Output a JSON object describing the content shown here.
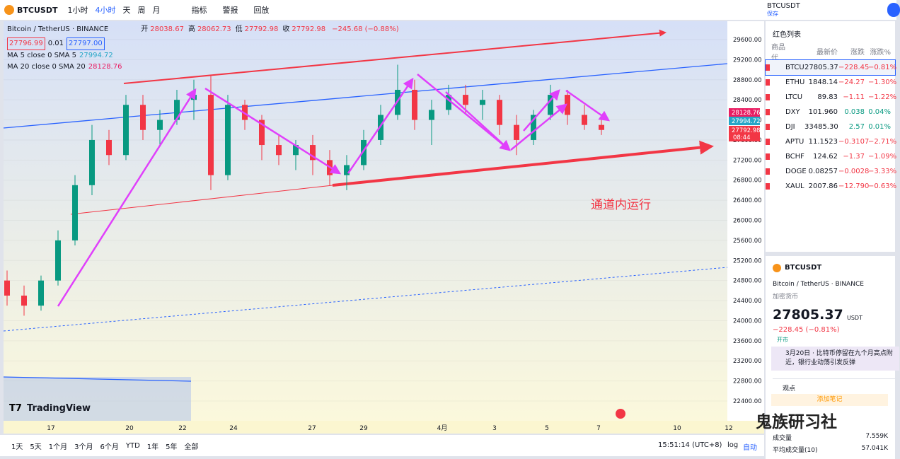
{
  "toolbar": {
    "symbol": "BTCUSDT",
    "intervals": [
      "1小时",
      "4小时",
      "天",
      "周",
      "月"
    ],
    "buttons": [
      "指标",
      "警报",
      "回放"
    ],
    "layout_name": "BTCUSDT",
    "save": "保存"
  },
  "legend": {
    "title": "Bitcoin / TetherUS · BINANCE",
    "ohlc": [
      {
        "k": "开",
        "v": "28038.67"
      },
      {
        "k": "高",
        "v": "28062.73"
      },
      {
        "k": "低",
        "v": "27792.98"
      },
      {
        "k": "收",
        "v": "27792.98"
      }
    ],
    "change": "−245.68 (−0.88%)",
    "bid": "27796.99",
    "spread": "0.01",
    "ask": "27797.00",
    "ma5": {
      "label": "MA 5 close 0 SMA 5",
      "value": "27994.72"
    },
    "ma20": {
      "label": "MA 20 close 0 SMA 20",
      "value": "28128.76"
    }
  },
  "chart": {
    "annotation": "通道内运行",
    "ylim": [
      22100,
      29950
    ],
    "yticks": [
      {
        "value": 29600,
        "label": "29600.00"
      },
      {
        "value": 29200,
        "label": "29200.00"
      },
      {
        "value": 28800,
        "label": "28800.00"
      },
      {
        "value": 28400,
        "label": "28400.00"
      },
      {
        "value": 28000,
        "label": "28000.00"
      },
      {
        "value": 27600,
        "label": "27600.00"
      },
      {
        "value": 27200,
        "label": "27200.00"
      },
      {
        "value": 26800,
        "label": "26800.00"
      },
      {
        "value": 26400,
        "label": "26400.00"
      },
      {
        "value": 26000,
        "label": "26000.00"
      },
      {
        "value": 25600,
        "label": "25600.00"
      },
      {
        "value": 25200,
        "label": "25200.00"
      },
      {
        "value": 24800,
        "label": "24800.00"
      },
      {
        "value": 24400,
        "label": "24400.00"
      },
      {
        "value": 24000,
        "label": "24000.00"
      },
      {
        "value": 23600,
        "label": "23600.00"
      },
      {
        "value": 23200,
        "label": "23200.00"
      },
      {
        "value": 22800,
        "label": "22800.00"
      },
      {
        "value": 22400,
        "label": "22400.00"
      }
    ],
    "xlabels": [
      "17",
      "20",
      "22",
      "24",
      "27",
      "29",
      "4月",
      "3",
      "5",
      "7",
      "10",
      "12"
    ],
    "price_tags": {
      "ma20": "28128.76",
      "ma5": "27994.72",
      "last": "27792.98",
      "countdown": "08:44"
    },
    "candles": [
      [
        24800,
        25000,
        24300,
        24500
      ],
      [
        24500,
        24700,
        24100,
        24300
      ],
      [
        24300,
        24900,
        24200,
        24800
      ],
      [
        24800,
        25800,
        24700,
        25600
      ],
      [
        25600,
        26900,
        25500,
        26700
      ],
      [
        26700,
        27900,
        26500,
        27600
      ],
      [
        27600,
        27800,
        27100,
        27300
      ],
      [
        27300,
        28500,
        27200,
        28300
      ],
      [
        28300,
        28500,
        27600,
        27800
      ],
      [
        27800,
        28200,
        27500,
        28000
      ],
      [
        28000,
        28600,
        27900,
        28400
      ],
      [
        28400,
        28800,
        28000,
        28500
      ],
      [
        28500,
        28900,
        26600,
        26900
      ],
      [
        26900,
        28500,
        26800,
        28300
      ],
      [
        28300,
        28400,
        27800,
        28000
      ],
      [
        28000,
        28100,
        27200,
        27500
      ],
      [
        27500,
        27700,
        27100,
        27300
      ],
      [
        27300,
        27600,
        27000,
        27500
      ],
      [
        27500,
        27700,
        26900,
        27200
      ],
      [
        27200,
        27400,
        26700,
        26900
      ],
      [
        26900,
        27300,
        26600,
        27100
      ],
      [
        27100,
        27800,
        27000,
        27600
      ],
      [
        27600,
        28300,
        27500,
        28100
      ],
      [
        28100,
        29100,
        28000,
        28600
      ],
      [
        28600,
        28800,
        27800,
        28000
      ],
      [
        28000,
        28400,
        27500,
        28200
      ],
      [
        28200,
        28700,
        28100,
        28500
      ],
      [
        28500,
        28700,
        28100,
        28300
      ],
      [
        28300,
        28600,
        28000,
        28400
      ],
      [
        28400,
        28500,
        27700,
        27900
      ],
      [
        27900,
        28100,
        27300,
        27600
      ],
      [
        27600,
        28200,
        27500,
        28100
      ],
      [
        28100,
        28700,
        28000,
        28500
      ],
      [
        28500,
        28600,
        27900,
        28100
      ],
      [
        28100,
        28300,
        27800,
        27900
      ],
      [
        27900,
        28100,
        27700,
        27800
      ]
    ],
    "logo": "TradingView"
  },
  "bottom_bar": {
    "ranges": [
      "1天",
      "5天",
      "1个月",
      "3个月",
      "6个月",
      "YTD",
      "1年",
      "5年",
      "全部"
    ],
    "time": "15:51:14 (UTC+8)",
    "log": "log",
    "auto": "自动"
  },
  "watchlist": {
    "title": "红色列表",
    "headers": [
      "商品代",
      "最新价",
      "涨跌",
      "涨跌%"
    ],
    "rows": [
      [
        "BTCU",
        "27805.37",
        "−228.45",
        "−0.81%"
      ],
      [
        "ETHU",
        "1848.14",
        "−24.27",
        "−1.30%"
      ],
      [
        "LTCU",
        "89.83",
        "−1.11",
        "−1.22%"
      ],
      [
        "DXY",
        "101.960",
        "0.038",
        "0.04%"
      ],
      [
        "DJI",
        "33485.30",
        "2.57",
        "0.01%"
      ],
      [
        "APTU",
        "11.1523",
        "−0.3107",
        "−2.71%"
      ],
      [
        "BCHF",
        "124.62",
        "−1.37",
        "−1.09%"
      ],
      [
        "DOGE",
        "0.08257",
        "−0.0028",
        "−3.33%"
      ],
      [
        "XAUL",
        "2007.86",
        "−12.790",
        "−0.63%"
      ]
    ]
  },
  "details": {
    "symbol": "BTCUSDT",
    "name": "Bitcoin / TetherUS",
    "exchange": "BINANCE",
    "category": "加密货币",
    "price": "27805.37",
    "currency": "USDT",
    "change": "−228.45 (−0.81%)",
    "status": "开市",
    "news": "3月20日 · 比特币停留在九个月高点附近，银行业动荡引发反弹",
    "ideas": "观点",
    "add_note": "添加笔记",
    "volume_label": "成交量",
    "volume": "7.559K",
    "avg_volume_label": "平均成交量(10)",
    "avg_volume": "57.041K"
  },
  "watermark": "鬼族研习社"
}
